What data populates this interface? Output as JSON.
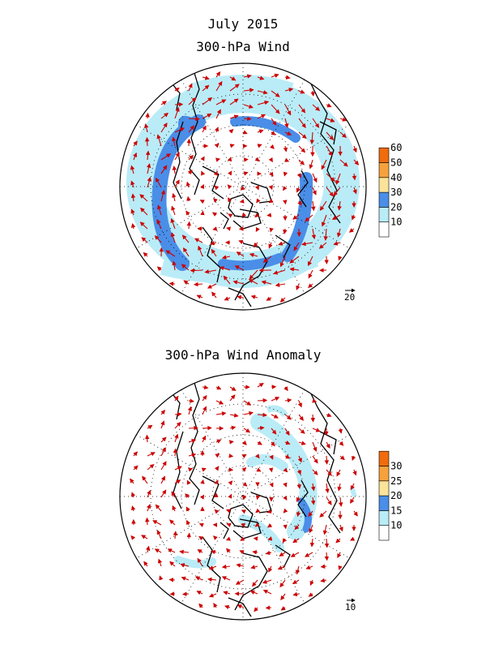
{
  "titles": {
    "month": "July 2015",
    "wind": "300-hPa Wind",
    "anomaly": "300-hPa Wind Anomaly"
  },
  "wind_map": {
    "legend": {
      "labels": [
        "10",
        "20",
        "30",
        "40",
        "50",
        "60"
      ],
      "colors": [
        "#ffffff",
        "#b9ecf7",
        "#4a8ee8",
        "#fbe39a",
        "#f6a23c",
        "#f06c0c"
      ]
    },
    "reference_vector": "20"
  },
  "anomaly_map": {
    "legend": {
      "labels": [
        "10",
        "15",
        "20",
        "25",
        "30"
      ],
      "colors": [
        "#ffffff",
        "#b9ecf7",
        "#4a8ee8",
        "#fbe39a",
        "#f6a23c",
        "#f06c0c"
      ]
    },
    "reference_vector": "10"
  },
  "colors": {
    "vectors": "#cc0000",
    "coast": "#000000",
    "grid": "#000000"
  }
}
